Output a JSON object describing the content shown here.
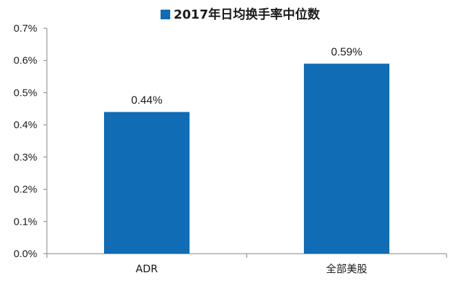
{
  "chart_data": {
    "type": "bar",
    "categories": [
      "ADR",
      "全部美股"
    ],
    "series": [
      {
        "name": "2017年日均换手率中位数",
        "values": [
          0.44,
          0.59
        ],
        "data_labels": [
          "0.44%",
          "0.59%"
        ]
      }
    ],
    "ylim": [
      0,
      0.7
    ],
    "y_ticks": [
      0.0,
      0.1,
      0.2,
      0.3,
      0.4,
      0.5,
      0.6,
      0.7
    ],
    "y_tick_labels": [
      "0.0%",
      "0.1%",
      "0.2%",
      "0.3%",
      "0.4%",
      "0.5%",
      "0.6%",
      "0.7%"
    ],
    "grid": false,
    "legend_position": "top",
    "colors": {
      "bar": "#0f6cb5",
      "axis": "#7f7f7f"
    }
  }
}
